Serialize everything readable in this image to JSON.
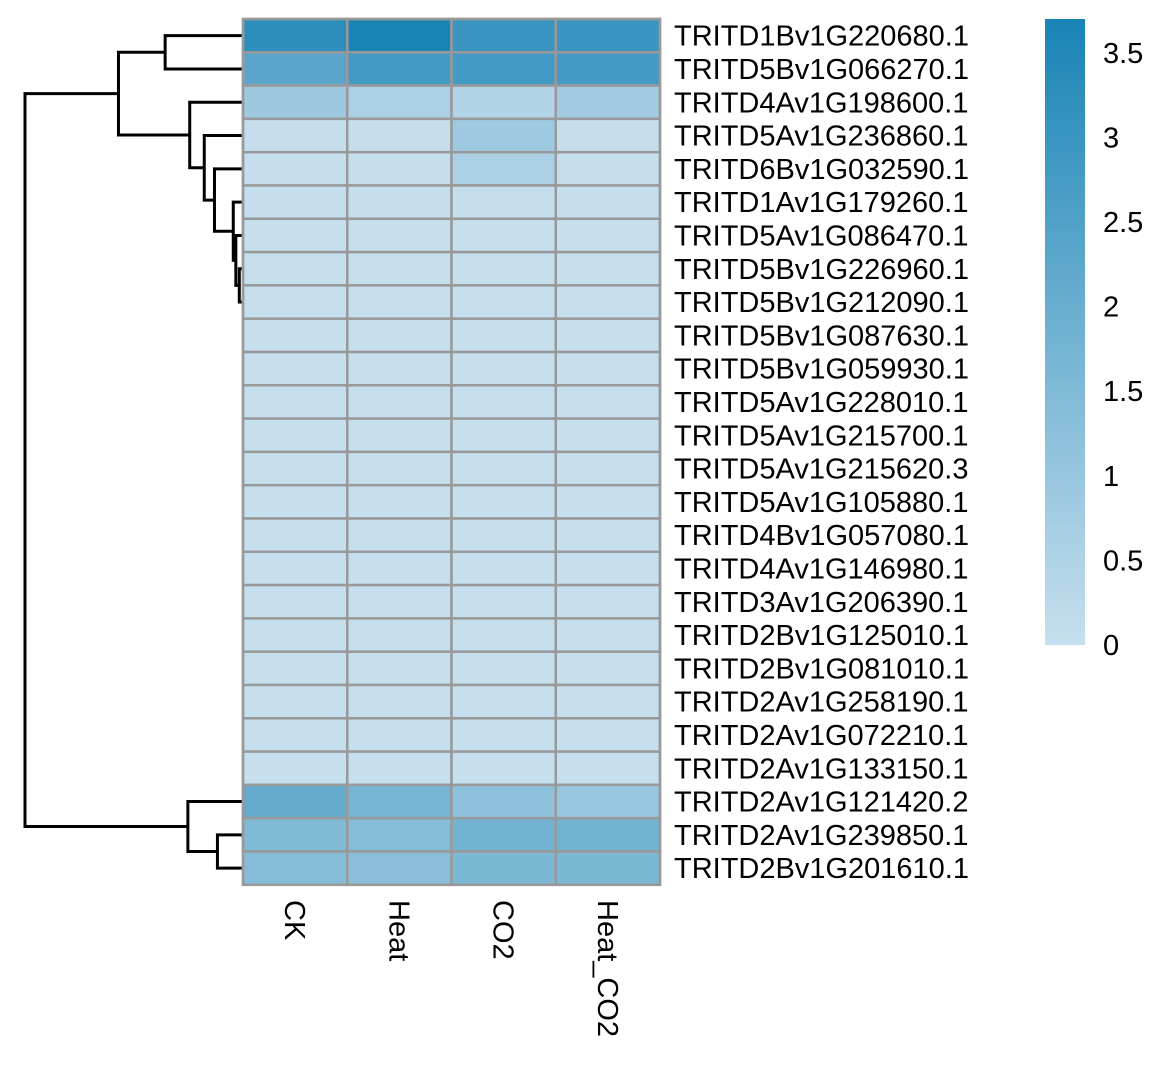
{
  "chart_data": {
    "type": "heatmap",
    "title": "",
    "xlabel": "",
    "ylabel": "",
    "columns": [
      "CK",
      "Heat",
      "CO2",
      "Heat_CO2"
    ],
    "rows": [
      "TRITD1Bv1G220680.1",
      "TRITD5Bv1G066270.1",
      "TRITD4Av1G198600.1",
      "TRITD5Av1G236860.1",
      "TRITD6Bv1G032590.1",
      "TRITD1Av1G179260.1",
      "TRITD5Av1G086470.1",
      "TRITD5Bv1G226960.1",
      "TRITD5Bv1G212090.1",
      "TRITD5Bv1G087630.1",
      "TRITD5Bv1G059930.1",
      "TRITD5Av1G228010.1",
      "TRITD5Av1G215700.1",
      "TRITD5Av1G215620.3",
      "TRITD5Av1G105880.1",
      "TRITD4Bv1G057080.1",
      "TRITD4Av1G146980.1",
      "TRITD3Av1G206390.1",
      "TRITD2Bv1G125010.1",
      "TRITD2Bv1G081010.1",
      "TRITD2Av1G258190.1",
      "TRITD2Av1G072210.1",
      "TRITD2Av1G133150.1",
      "TRITD2Av1G121420.2",
      "TRITD2Av1G239850.1",
      "TRITD2Bv1G201610.1"
    ],
    "values": [
      [
        3.3,
        3.7,
        3.0,
        3.0
      ],
      [
        2.3,
        2.8,
        2.8,
        2.8
      ],
      [
        0.9,
        0.55,
        0.45,
        0.8
      ],
      [
        0.05,
        0.05,
        0.85,
        0.05
      ],
      [
        0.05,
        0.05,
        0.55,
        0.05
      ],
      [
        0.05,
        0.05,
        0.05,
        0.05
      ],
      [
        0.02,
        0.02,
        0.02,
        0.02
      ],
      [
        0.02,
        0.02,
        0.02,
        0.02
      ],
      [
        0.02,
        0.02,
        0.02,
        0.02
      ],
      [
        0.02,
        0.02,
        0.02,
        0.02
      ],
      [
        0.02,
        0.02,
        0.02,
        0.02
      ],
      [
        0.02,
        0.02,
        0.02,
        0.02
      ],
      [
        0.02,
        0.02,
        0.02,
        0.02
      ],
      [
        0.02,
        0.02,
        0.02,
        0.02
      ],
      [
        0.02,
        0.02,
        0.02,
        0.02
      ],
      [
        0.02,
        0.02,
        0.02,
        0.02
      ],
      [
        0.02,
        0.02,
        0.02,
        0.02
      ],
      [
        0.02,
        0.02,
        0.02,
        0.02
      ],
      [
        0.02,
        0.02,
        0.02,
        0.02
      ],
      [
        0.02,
        0.02,
        0.02,
        0.02
      ],
      [
        0.02,
        0.02,
        0.02,
        0.02
      ],
      [
        0.02,
        0.02,
        0.02,
        0.02
      ],
      [
        0.02,
        0.02,
        0.02,
        0.02
      ],
      [
        2.1,
        1.7,
        1.2,
        1.0
      ],
      [
        1.5,
        1.4,
        1.8,
        1.8
      ],
      [
        1.4,
        1.3,
        1.6,
        1.6
      ]
    ],
    "color_scale": {
      "min": 0,
      "max": 3.7,
      "low_color": "#c6dfee",
      "high_color": "#1984b6"
    },
    "legend": {
      "placement": "right",
      "ticks": [
        {
          "value": 0,
          "label": "0"
        },
        {
          "value": 0.5,
          "label": "0.5"
        },
        {
          "value": 1,
          "label": "1"
        },
        {
          "value": 1.5,
          "label": "1.5"
        },
        {
          "value": 2,
          "label": "2"
        },
        {
          "value": 2.5,
          "label": "2.5"
        },
        {
          "value": 3,
          "label": "3"
        },
        {
          "value": 3.5,
          "label": "3.5"
        }
      ]
    },
    "row_dendrogram": {
      "side": "left",
      "merges": [
        [
          0,
          1,
          1.6
        ],
        [
          7,
          8,
          0.01
        ],
        [
          6,
          "m1",
          0.03
        ],
        [
          5,
          "m2",
          0.05
        ],
        [
          4,
          "m3",
          0.3
        ],
        [
          3,
          "m4",
          0.5
        ],
        [
          2,
          "m5",
          0.85
        ],
        [
          "m0",
          "m6",
          3.5
        ],
        [
          24,
          25,
          0.25
        ],
        [
          23,
          "m8",
          0.9
        ],
        [
          "m7",
          "m9",
          8.9
        ]
      ]
    },
    "grid": true
  }
}
